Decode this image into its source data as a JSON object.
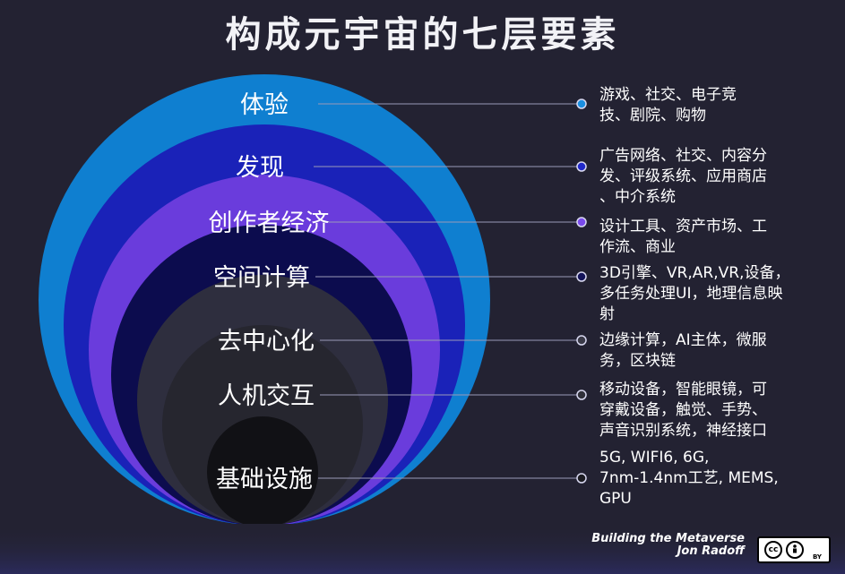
{
  "title": "构成元宇宙的七层要素",
  "layers": [
    {
      "label": "体验",
      "color": "#0f7fd0",
      "dot": "#1a8fe0",
      "description": "游戏、社交、电子竞\n技、剧院、购物"
    },
    {
      "label": "发现",
      "color": "#1a22b8",
      "dot": "#2028c8",
      "description": "广告网络、社交、内容分\n发、评级系统、应用商店\n、中介系统"
    },
    {
      "label": "创作者经济",
      "color": "#6a3cdc",
      "dot": "#7a4aec",
      "description": "设计工具、资产市场、工\n作流、商业"
    },
    {
      "label": "空间计算",
      "color": "#0c0c4e",
      "dot": "#14145a",
      "description": "3D引擎、VR,AR,VR,设备，\n多任务处理UI，地理信息映\n射"
    },
    {
      "label": "去中心化",
      "color": "#2e2e3e",
      "dot": "#3a3a48",
      "description": "边缘计算，AI主体，微服\n务，区块链"
    },
    {
      "label": "人机交互",
      "color": "#26262f",
      "dot": "#30303a",
      "description": "移动设备，智能眼镜，可\n穿戴设备，触觉、手势、\n声音识别系统，神经接口"
    },
    {
      "label": "基础设施",
      "color": "#111115",
      "dot": "#1c1c22",
      "description": "5G, WIFI6, 6G,\n7nm-1.4nm工艺, MEMS,\nGPU"
    }
  ],
  "credit": {
    "line1": "Building the Metaverse",
    "line2": "Jon Radoff"
  },
  "license": {
    "cc": "cc",
    "by": "BY"
  }
}
